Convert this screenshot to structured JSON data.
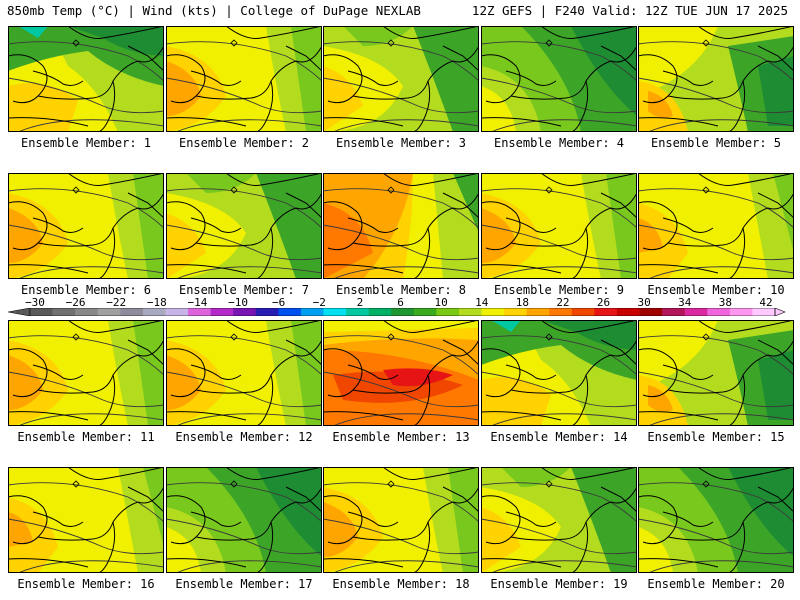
{
  "header": {
    "left_title": "850mb Temp (°C) | Wind (kts) | College of DuPage NEXLAB",
    "right_title": "12Z GEFS | F240 Valid: 12Z TUE JUN 17 2025"
  },
  "caption_prefix": "Ensemble Member:",
  "members": [
    {
      "number": "1",
      "pattern": "cool-north"
    },
    {
      "number": "2",
      "pattern": "warm-west"
    },
    {
      "number": "3",
      "pattern": "mild"
    },
    {
      "number": "4",
      "pattern": "cool"
    },
    {
      "number": "5",
      "pattern": "warm-sw"
    },
    {
      "number": "6",
      "pattern": "warm-west"
    },
    {
      "number": "7",
      "pattern": "mild"
    },
    {
      "number": "8",
      "pattern": "hot-west"
    },
    {
      "number": "9",
      "pattern": "warm-west"
    },
    {
      "number": "10",
      "pattern": "warm"
    },
    {
      "number": "11",
      "pattern": "warm-west"
    },
    {
      "number": "12",
      "pattern": "warm-west"
    },
    {
      "number": "13",
      "pattern": "hot"
    },
    {
      "number": "14",
      "pattern": "cool-north"
    },
    {
      "number": "15",
      "pattern": "warm-sw"
    },
    {
      "number": "16",
      "pattern": "warm"
    },
    {
      "number": "17",
      "pattern": "cool"
    },
    {
      "number": "18",
      "pattern": "warm-west"
    },
    {
      "number": "19",
      "pattern": "mild"
    },
    {
      "number": "20",
      "pattern": "cool"
    }
  ],
  "colorbar": {
    "labels": [
      "−30",
      "−26",
      "−22",
      "−18",
      "−14",
      "−10",
      "−6",
      "−2",
      "2",
      "6",
      "10",
      "14",
      "18",
      "22",
      "26",
      "30",
      "34",
      "38",
      "42"
    ],
    "colors": [
      "#5a5a5a",
      "#707070",
      "#888888",
      "#a0a0a0",
      "#8c8c9c",
      "#a8a8c0",
      "#c8b4e6",
      "#dc64dc",
      "#b428c8",
      "#7814b4",
      "#281eb4",
      "#0050f0",
      "#00a0f0",
      "#00e0f0",
      "#00c8a0",
      "#00b064",
      "#1e9632",
      "#3caa1e",
      "#78c814",
      "#b4dc1e",
      "#f0f000",
      "#ffd200",
      "#ffa500",
      "#ff7800",
      "#f04600",
      "#e61414",
      "#c80000",
      "#a00000",
      "#b4145a",
      "#dc28a0",
      "#f064dc",
      "#ff96f0",
      "#ffc8ff"
    ]
  },
  "palette": {
    "dark_green": "#1e8c32",
    "green": "#3ca528",
    "light_green": "#78c81e",
    "yellow_green": "#b4dc1e",
    "yellow": "#f0f000",
    "gold": "#ffd200",
    "orange": "#ffa500",
    "dark_orange": "#ff7800",
    "red_orange": "#f04600",
    "red": "#e61414",
    "teal": "#00c8a0",
    "cyan": "#00e6f0"
  }
}
